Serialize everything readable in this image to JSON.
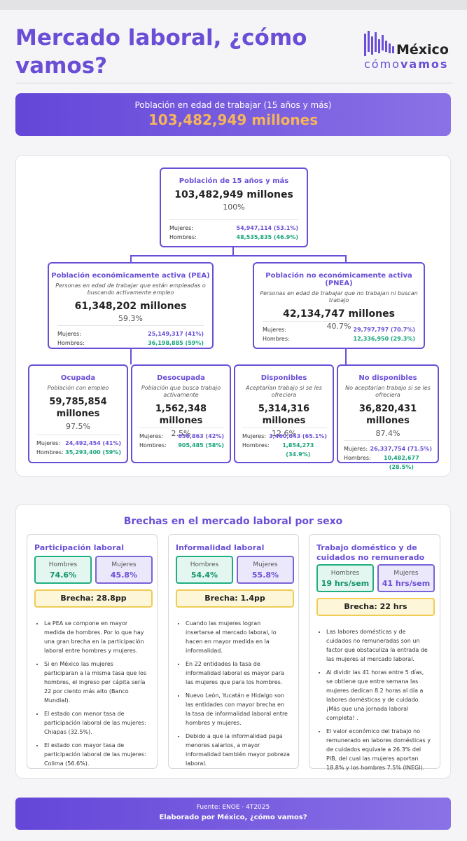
{
  "header": {
    "title": "Mercado laboral, ¿cómo vamos?",
    "logo_top": "México",
    "logo_bottom_light": "cómo",
    "logo_bottom_bold": "vamos"
  },
  "banner": {
    "label": "Población en edad de trabajar (15 años y más)",
    "value": "103,482,949 millones"
  },
  "tree": {
    "root": {
      "title": "Población de 15 años y más",
      "value": "103,482,949 millones",
      "pct": "100%",
      "women_label": "Mujeres:",
      "women": "54,947,114 (53.1%)",
      "men_label": "Hombres:",
      "men": "48,535,835 (46.9%)"
    },
    "pea": {
      "title": "Población económicamente activa (PEA)",
      "desc": "Personas en edad de trabajar que están empleadas o buscando activamente empleo",
      "value": "61,348,202 millones",
      "pct": "59.3%",
      "women_label": "Mujeres:",
      "women": "25,149,317 (41%)",
      "men_label": "Hombres:",
      "men": "36,198,885 (59%)"
    },
    "pnea": {
      "title": "Población no económicamente activa (PNEA)",
      "desc": "Personas en edad de trabajar que no trabajan ni buscan trabajo",
      "value": "42,134,747 millones",
      "pct": "40.7%",
      "women_label": "Mujeres:",
      "women": "29,797,797 (70.7%)",
      "men_label": "Hombres:",
      "men": "12,336,950 (29.3%)"
    },
    "ocupada": {
      "title": "Ocupada",
      "desc": "Población con empleo",
      "value": "59,785,854 millones",
      "pct": "97.5%",
      "women_label": "Mujeres:",
      "women": "24,492,454 (41%)",
      "men_label": "Hombres:",
      "men": "35,293,400 (59%)"
    },
    "desocupada": {
      "title": "Desocupada",
      "desc": "Población que busca trabajo activamente",
      "value": "1,562,348 millones",
      "pct": "2.5%",
      "women_label": "Mujeres:",
      "women": "656,863 (42%)",
      "men_label": "Hombres:",
      "men": "905,485 (58%)"
    },
    "disponibles": {
      "title": "Disponibles",
      "desc": "Aceptarían trabajo si se les ofreciera",
      "value": "5,314,316 millones",
      "pct": "12.6%",
      "women_label": "Mujeres:",
      "women": "3,460,043 (65.1%)",
      "men_label": "Hombres:",
      "men": "1,854,273 (34.9%)"
    },
    "nodisponibles": {
      "title": "No disponibles",
      "desc": "No aceptarían trabajo si se les ofreciera",
      "value": "36,820,431 millones",
      "pct": "87.4%",
      "women_label": "Mujeres:",
      "women": "26,337,754 (71.5%)",
      "men_label": "Hombres:",
      "men": "10,482,677 (28.5%)"
    }
  },
  "gaps": {
    "title": "Brechas en el mercado laboral por sexo",
    "cards": [
      {
        "title": "Participación laboral",
        "men_label": "Hombres",
        "men_value": "74.6%",
        "women_label": "Mujeres",
        "women_value": "45.8%",
        "gap": "Brecha: 28.8pp",
        "bullets": [
          "La PEA se compone en mayor medida de hombres. Por lo que hay una gran brecha en la participación laboral entre hombres y mujeres.",
          "Si en México las mujeres participaran a la misma tasa que los hombres, el ingreso per cápita sería 22 por ciento más alto (Banco Mundial).",
          "El estado con menor tasa de participación laboral de las mujeres: Chiapas (32.5%).",
          "El estado con mayor tasa de participación laboral de las mujeres: Colima (56.6%)."
        ]
      },
      {
        "title": "Informalidad laboral",
        "men_label": "Hombres",
        "men_value": "54.4%",
        "women_label": "Mujeres",
        "women_value": "55.8%",
        "gap": "Brecha: 1.4pp",
        "bullets": [
          "Cuando las mujeres logran insertarse al mercado laboral, lo hacen en mayor medida en la informalidad.",
          "En 22 entidades la tasa de informalidad laboral es mayor para las mujeres que para los hombres.",
          "Nuevo León, Yucatán e Hidalgo son las entidades con mayor brecha en la tasa de informalidad laboral entre hombres y mujeres.",
          "Debido a que la informalidad paga menores salarios, a mayor informalidad también mayor pobreza laboral."
        ]
      },
      {
        "title": "Trabajo doméstico y de cuidados no remunerado",
        "men_label": "Hombres",
        "men_value": "19 hrs/sem",
        "women_label": "Mujeres",
        "women_value": "41 hrs/sem",
        "gap": "Brecha: 22 hrs",
        "bullets": [
          "Las labores domésticas y de cuidados no remuneradas son un factor que obstaculiza la entrada de las mujeres al mercado laboral.",
          "Al dividir las 41 horas entre 5 días, se obtiene que entre semana las mujeres dedican 8.2 horas al día a labores domésticas y de cuidado. ¡Más que una jornada laboral completa! .",
          "El valor económico del trabajo no remunerado en labores domésticas y de cuidados equivale a 26.3% del PIB, del cual las mujeres aportan 18.8% y los hombres 7.5% (INEGI)."
        ]
      }
    ]
  },
  "footer": {
    "source": "Fuente: ENOE · 4T2025",
    "credit": "Elaborado por México, ¿cómo vamos?"
  },
  "colors": {
    "purple": "#6a4fd6",
    "green": "#18a37a",
    "orange": "#f6b55a",
    "yellow": "#efcc54"
  }
}
